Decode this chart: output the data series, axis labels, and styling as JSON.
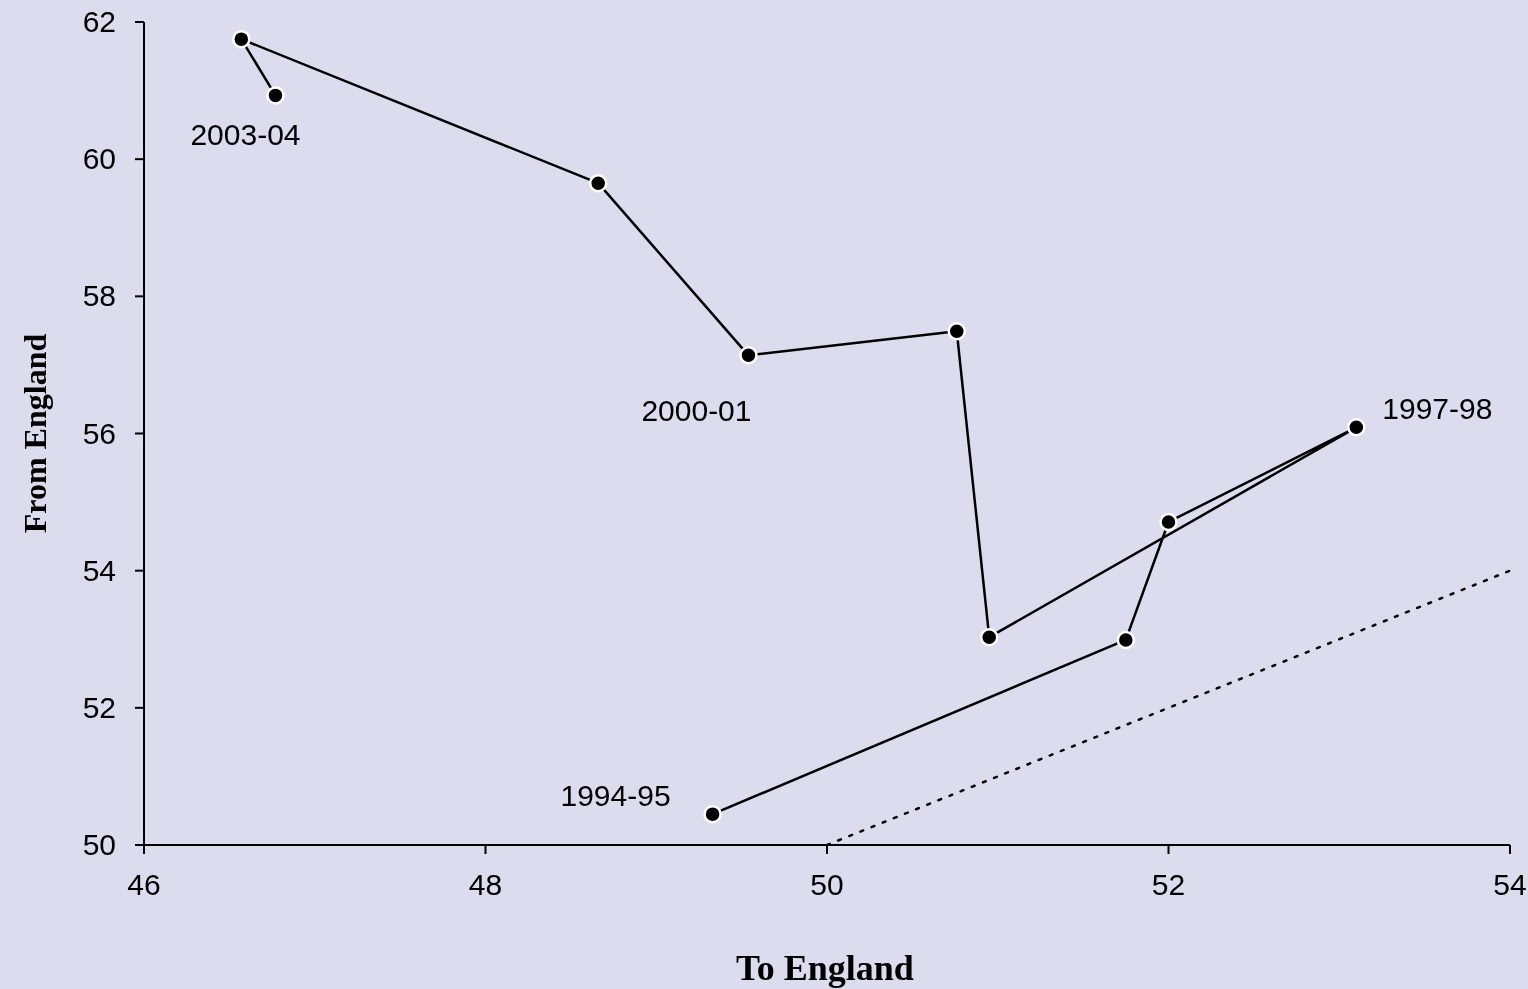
{
  "chart_data": {
    "type": "line",
    "xlabel": "To England",
    "ylabel": "From England",
    "xlim": [
      46,
      54
    ],
    "ylim": [
      50,
      62
    ],
    "xticks": [
      46,
      48,
      50,
      52,
      54
    ],
    "yticks": [
      50,
      52,
      54,
      56,
      58,
      60,
      62
    ],
    "grid": false,
    "series": [
      {
        "color": "#000000",
        "marker": "circle",
        "line_style": "solid",
        "x": [
          49.33,
          51.75,
          52.0,
          53.1,
          50.95,
          50.76,
          49.54,
          48.66,
          46.57,
          46.77
        ],
        "values": [
          50.45,
          52.99,
          54.71,
          56.09,
          53.03,
          57.49,
          57.14,
          59.65,
          61.75,
          60.93
        ]
      },
      {
        "color": "#000000",
        "marker": "none",
        "line_style": "dotted",
        "x": [
          50,
          54
        ],
        "values": [
          50,
          54
        ]
      }
    ],
    "annotations": [
      {
        "text": "1994-95",
        "x": 49.33,
        "y": 50.45
      },
      {
        "text": "1997-98",
        "x": 53.1,
        "y": 56.09
      },
      {
        "text": "2000-01",
        "x": 49.54,
        "y": 57.14
      },
      {
        "text": "2003-04",
        "x": 46.77,
        "y": 60.93
      }
    ]
  }
}
